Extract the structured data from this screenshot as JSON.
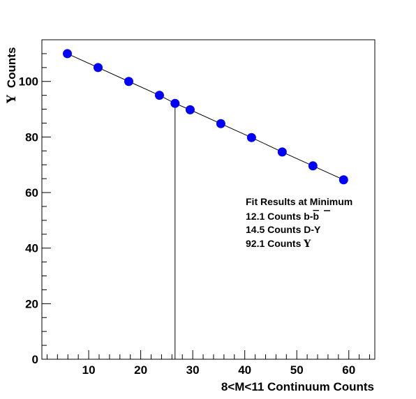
{
  "chart_data": {
    "type": "scatter",
    "xlabel": "8<M<11 Continuum Counts",
    "ylabel_symbol": "Υ",
    "ylabel_text": "Counts",
    "xlim": [
      1,
      65
    ],
    "ylim": [
      0,
      115
    ],
    "x_ticks": [
      10,
      20,
      30,
      40,
      50,
      60
    ],
    "y_ticks": [
      0,
      20,
      40,
      60,
      80,
      100
    ],
    "x_tick_labels": [
      "10",
      "20",
      "30",
      "40",
      "50",
      "60"
    ],
    "y_tick_labels": [
      "0",
      "20",
      "40",
      "60",
      "80",
      "100"
    ],
    "grid": false,
    "marker_color": "#0000ff",
    "line_color": "#000000",
    "points": [
      {
        "x": 5.9,
        "y": 110.0
      },
      {
        "x": 11.8,
        "y": 105.0
      },
      {
        "x": 17.7,
        "y": 100.0
      },
      {
        "x": 23.6,
        "y": 95.0
      },
      {
        "x": 26.6,
        "y": 92.1
      },
      {
        "x": 29.5,
        "y": 89.8
      },
      {
        "x": 35.4,
        "y": 84.8
      },
      {
        "x": 41.3,
        "y": 79.8
      },
      {
        "x": 47.2,
        "y": 74.6
      },
      {
        "x": 53.1,
        "y": 69.6
      },
      {
        "x": 59.0,
        "y": 64.6
      }
    ],
    "minimum_marker": {
      "x": 26.6,
      "y": 92.1
    },
    "annotations": {
      "title": "Fit Results at Minimum",
      "line1_prefix": "12.1 Counts b-",
      "line1_bar": "b",
      "line2": "14.5 Counts D-Y",
      "line3_prefix": "92.1 Counts ",
      "line3_symbol": "Υ"
    }
  }
}
